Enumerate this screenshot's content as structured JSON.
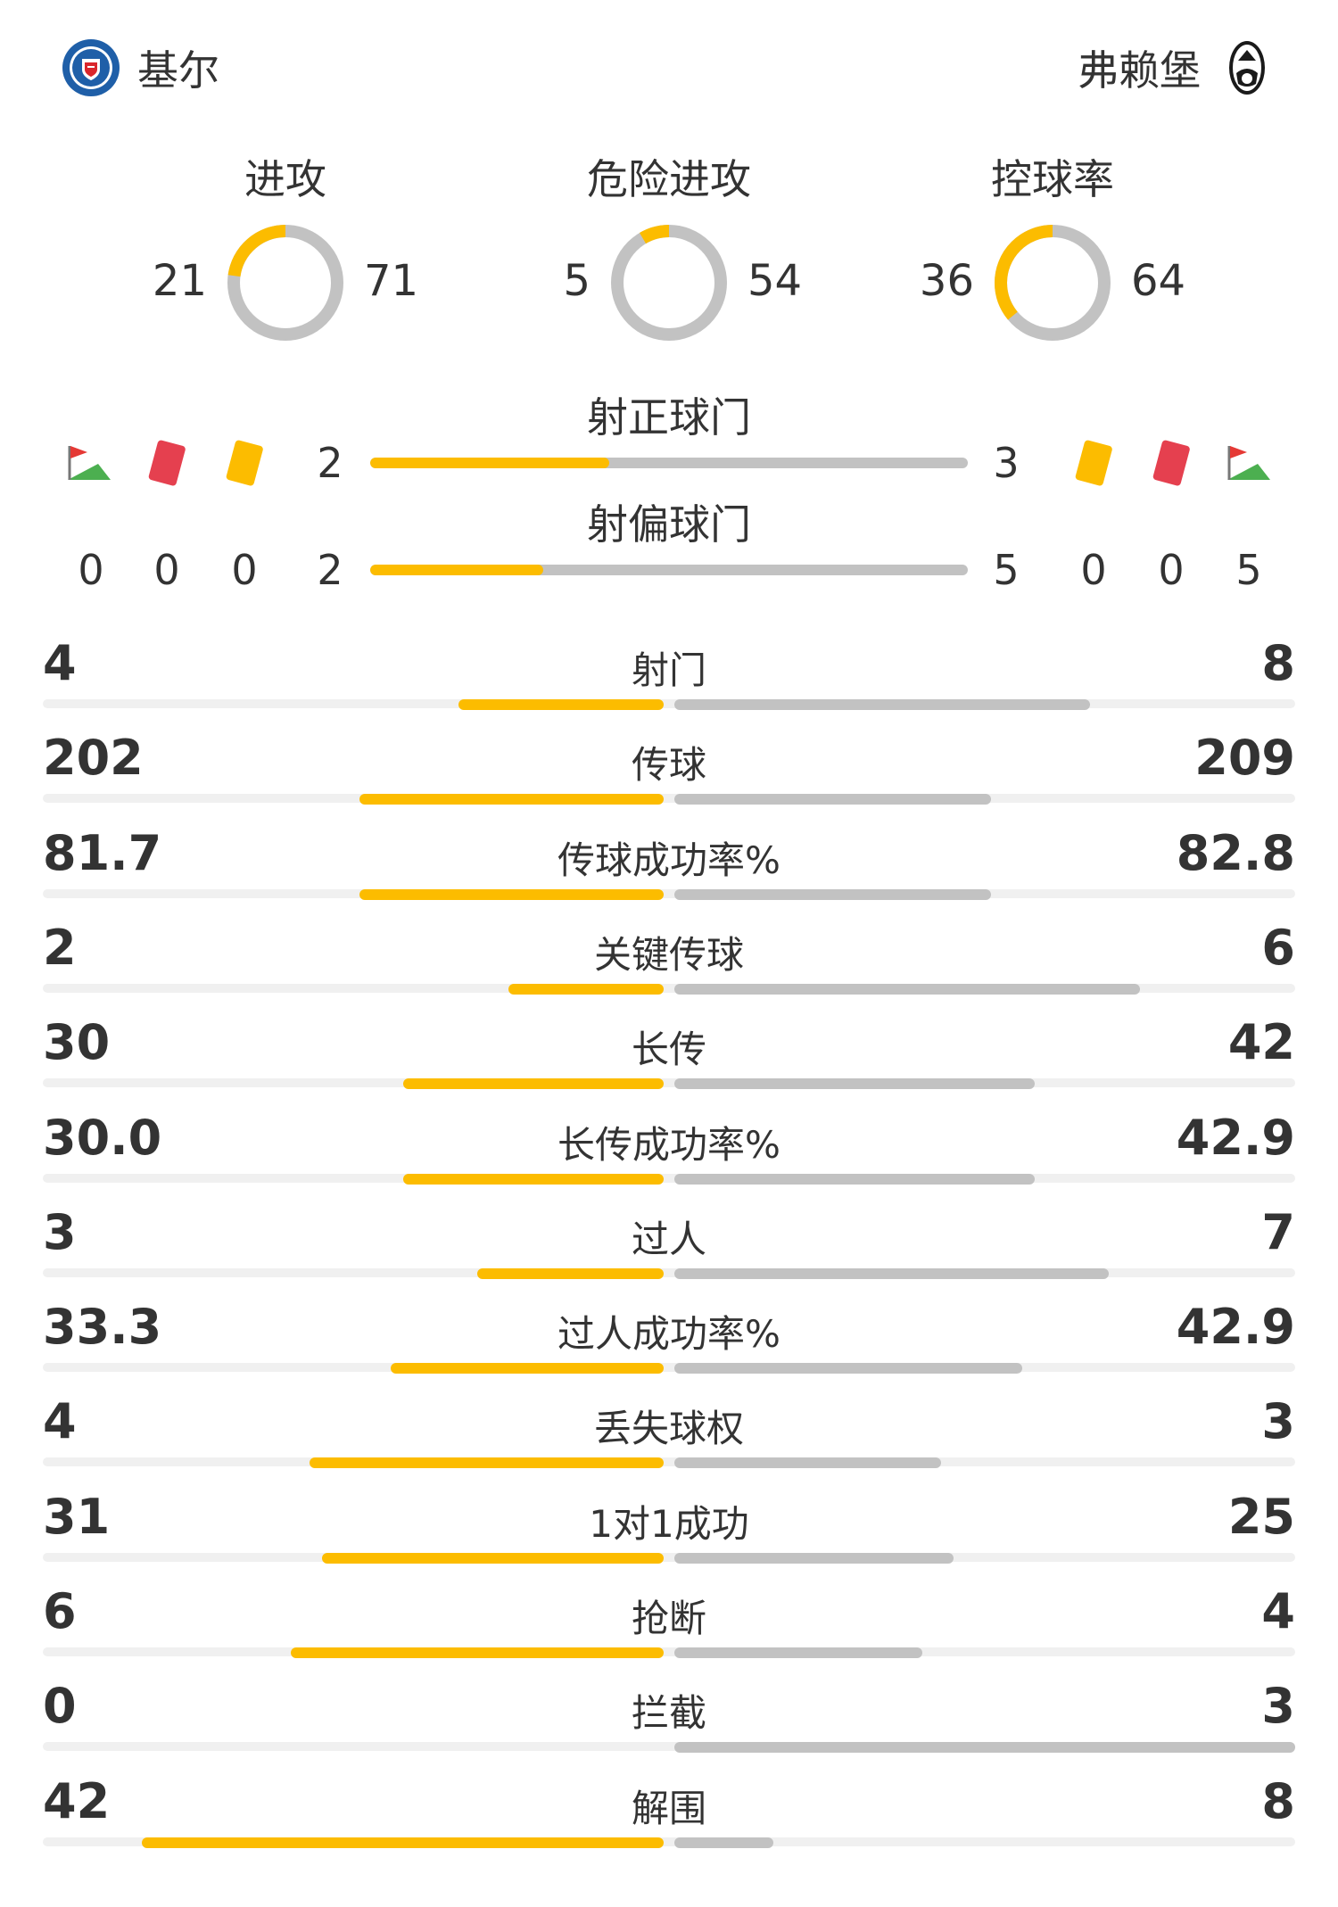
{
  "teams": {
    "home": {
      "name": "基尔",
      "badge_icon": "holstein-kiel-crest-icon"
    },
    "away": {
      "name": "弗赖堡",
      "badge_icon": "sc-freiburg-crest-icon"
    }
  },
  "colors": {
    "home": "#fcbc00",
    "away": "#c2c2c2",
    "text": "#333333",
    "track": "#f0f0f0"
  },
  "donuts": [
    {
      "label": "进攻",
      "home": "21",
      "away": "71",
      "home_value": 21,
      "away_value": 71
    },
    {
      "label": "危险进攻",
      "home": "5",
      "away": "54",
      "home_value": 5,
      "away_value": 54
    },
    {
      "label": "控球率",
      "home": "36",
      "away": "64",
      "home_value": 36,
      "away_value": 64
    }
  ],
  "shots": {
    "on_target": {
      "label": "射正球门",
      "home": "2",
      "away": "3",
      "home_fraction": 0.4
    },
    "off_target": {
      "label": "射偏球门",
      "home": "2",
      "away": "5",
      "home_fraction": 0.29
    }
  },
  "discipline": {
    "icons_home": [
      "corner-flag-icon",
      "red-card-icon",
      "yellow-card-icon"
    ],
    "icons_away": [
      "yellow-card-icon",
      "red-card-icon",
      "corner-flag-icon"
    ],
    "home": {
      "corners": "0",
      "red_cards": "0",
      "yellow_cards": "0"
    },
    "away": {
      "yellow_cards": "0",
      "red_cards": "0",
      "corners": "5"
    }
  },
  "stats": [
    {
      "label": "射门",
      "home": "4",
      "away": "8",
      "home_bar": 0.33,
      "away_bar": 0.67
    },
    {
      "label": "传球",
      "home": "202",
      "away": "209",
      "home_bar": 0.49,
      "away_bar": 0.51
    },
    {
      "label": "传球成功率%",
      "home": "81.7",
      "away": "82.8",
      "home_bar": 0.49,
      "away_bar": 0.51
    },
    {
      "label": "关键传球",
      "home": "2",
      "away": "6",
      "home_bar": 0.25,
      "away_bar": 0.75
    },
    {
      "label": "长传",
      "home": "30",
      "away": "42",
      "home_bar": 0.42,
      "away_bar": 0.58
    },
    {
      "label": "长传成功率%",
      "home": "30.0",
      "away": "42.9",
      "home_bar": 0.42,
      "away_bar": 0.58
    },
    {
      "label": "过人",
      "home": "3",
      "away": "7",
      "home_bar": 0.3,
      "away_bar": 0.7
    },
    {
      "label": "过人成功率%",
      "home": "33.3",
      "away": "42.9",
      "home_bar": 0.44,
      "away_bar": 0.56
    },
    {
      "label": "丢失球权",
      "home": "4",
      "away": "3",
      "home_bar": 0.57,
      "away_bar": 0.43
    },
    {
      "label": "1对1成功",
      "home": "31",
      "away": "25",
      "home_bar": 0.55,
      "away_bar": 0.45
    },
    {
      "label": "抢断",
      "home": "6",
      "away": "4",
      "home_bar": 0.6,
      "away_bar": 0.4
    },
    {
      "label": "拦截",
      "home": "0",
      "away": "3",
      "home_bar": 0.0,
      "away_bar": 1.0
    },
    {
      "label": "解围",
      "home": "42",
      "away": "8",
      "home_bar": 0.84,
      "away_bar": 0.16
    }
  ]
}
